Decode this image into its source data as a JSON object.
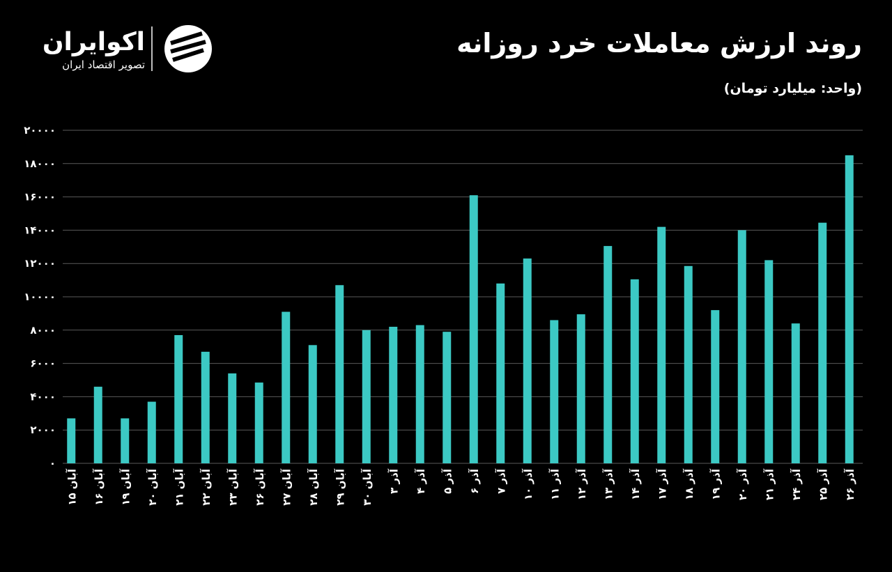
{
  "logo": {
    "name": "اکوایران",
    "tagline": "تصویر اقتصاد ایران"
  },
  "chart_data": {
    "type": "bar",
    "title": "روند ارزش معاملات خرد روزانه",
    "subtitle": "(واحد: میلیارد تومان)",
    "categories": [
      "آبان ۱۵",
      "آبان ۱۶",
      "آبان ۱۹",
      "آبان ۲۰",
      "آبان ۲۱",
      "آبان ۲۲",
      "آبان ۲۳",
      "آبان ۲۶",
      "آبان ۲۷",
      "آبان ۲۸",
      "آبان ۲۹",
      "آبان ۳۰",
      "آذر ۳",
      "آذر ۴",
      "آذر ۵",
      "آذر ۶",
      "آذر ۷",
      "آذر ۱۰",
      "آذر ۱۱",
      "آذر ۱۲",
      "آذر ۱۳",
      "آذر ۱۴",
      "آذر ۱۷",
      "آذر ۱۸",
      "آذر ۱۹",
      "آذر ۲۰",
      "آذر ۲۱",
      "آذر ۲۴",
      "آذر ۲۵",
      "آذر ۲۶"
    ],
    "values": [
      2700,
      4600,
      2700,
      3700,
      7700,
      6700,
      5400,
      4850,
      9100,
      7100,
      10700,
      8000,
      8200,
      8300,
      7900,
      16100,
      10800,
      12300,
      8600,
      8950,
      13050,
      11050,
      14200,
      11850,
      9200,
      14000,
      12200,
      8400,
      14450,
      18500
    ],
    "color": "#3cc9c4",
    "ylim": [
      0,
      20000
    ],
    "yticks": [
      {
        "value": 0,
        "label": "۰"
      },
      {
        "value": 2000,
        "label": "۲۰۰۰"
      },
      {
        "value": 4000,
        "label": "۴۰۰۰"
      },
      {
        "value": 6000,
        "label": "۶۰۰۰"
      },
      {
        "value": 8000,
        "label": "۸۰۰۰"
      },
      {
        "value": 10000,
        "label": "۱۰۰۰۰"
      },
      {
        "value": 12000,
        "label": "۱۲۰۰۰"
      },
      {
        "value": 14000,
        "label": "۱۴۰۰۰"
      },
      {
        "value": 16000,
        "label": "۱۶۰۰۰"
      },
      {
        "value": 18000,
        "label": "۱۸۰۰۰"
      },
      {
        "value": 20000,
        "label": "۲۰۰۰۰"
      }
    ],
    "grid": true
  }
}
